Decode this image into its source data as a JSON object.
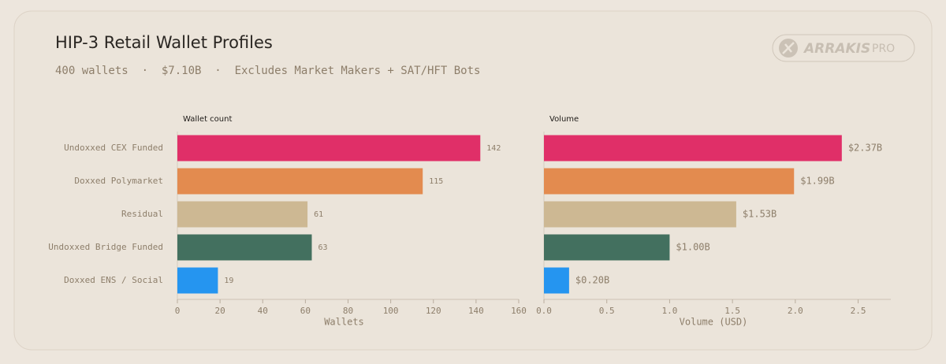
{
  "header": {
    "title": "HIP-3 Retail Wallet Profiles",
    "subtitle": "400 wallets  ·  $7.10B  ·  Excludes Market Makers + SAT/HFT Bots",
    "brand": "ARRAKIS",
    "tier": "PRO"
  },
  "chart_data": [
    {
      "type": "bar",
      "orientation": "horizontal",
      "title": "Wallet count",
      "xlabel": "Wallets",
      "categories": [
        "Undoxxed CEX Funded",
        "Doxxed Polymarket",
        "Residual",
        "Undoxxed Bridge Funded",
        "Doxxed ENS / Social"
      ],
      "values": [
        142,
        115,
        61,
        63,
        19
      ],
      "colors": [
        "#e02f68",
        "#e38b4f",
        "#cdb893",
        "#43705f",
        "#2595f0"
      ],
      "xlim": [
        0,
        160
      ],
      "xticks": [
        0,
        20,
        40,
        60,
        80,
        100,
        120,
        140,
        160
      ]
    },
    {
      "type": "bar",
      "orientation": "horizontal",
      "title": "Volume",
      "xlabel": "Volume (USD)",
      "values": [
        2.37,
        1.99,
        1.53,
        1.0,
        0.2
      ],
      "value_labels": [
        "$2.37B",
        "$1.99B",
        "$1.53B",
        "$1.00B",
        "$0.20B"
      ],
      "colors": [
        "#e02f68",
        "#e38b4f",
        "#cdb893",
        "#43705f",
        "#2595f0"
      ],
      "xlim": [
        0,
        2.76
      ],
      "xticks": [
        {
          "value": 0,
          "label": "0.0"
        },
        0.5,
        {
          "value": 1,
          "label": "1.0"
        },
        1.5,
        {
          "value": 2,
          "label": "2.0"
        },
        2.5
      ]
    }
  ]
}
